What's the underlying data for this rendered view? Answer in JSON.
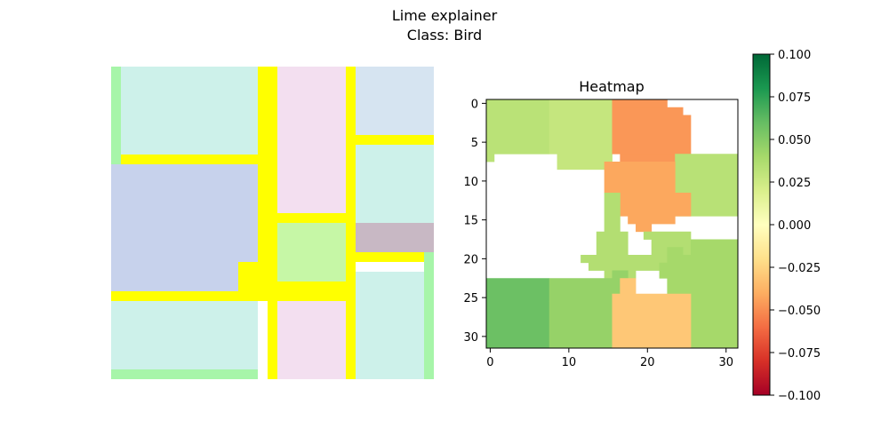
{
  "figure": {
    "title_line1": "Lime explainer",
    "title_line2": "Class: Bird"
  },
  "chart_data": [
    {
      "type": "image",
      "description_key": "superpixel-boundary-overlay",
      "segments": [
        {
          "id": "A",
          "color": "#cdf1ea"
        },
        {
          "id": "B",
          "color": "#f3dff0"
        },
        {
          "id": "C",
          "color": "#d6e4f1"
        },
        {
          "id": "D",
          "color": "#c7d2ec"
        },
        {
          "id": "E",
          "color": "#cdf1ea"
        },
        {
          "id": "F",
          "color": "#c6f7a6"
        },
        {
          "id": "G",
          "color": "#cdf1ea"
        },
        {
          "id": "H",
          "color": "#f3dff0"
        },
        {
          "id": "I",
          "color": "#cdf1ea"
        },
        {
          "id": "J",
          "color": "#c8b8c4"
        }
      ],
      "boundary_color": "#ffff00",
      "border_color": "#a7f5a9"
    },
    {
      "type": "heatmap",
      "title": "Heatmap",
      "grid_size": 32,
      "xlim": [
        -0.5,
        31.5
      ],
      "ylim": [
        31.5,
        -0.5
      ],
      "xticks": [
        0,
        10,
        20,
        30
      ],
      "yticks": [
        0,
        5,
        10,
        15,
        20,
        25,
        30
      ],
      "colormap": "RdYlGn",
      "vmin": -0.1,
      "vmax": 0.1,
      "colorbar_ticks": [
        "0.100",
        "0.075",
        "0.050",
        "0.025",
        "0.000",
        "−0.025",
        "−0.050",
        "−0.075",
        "−0.100"
      ],
      "regions": [
        {
          "id": "r1",
          "value": 0.032,
          "cells": [
            [
              0,
              0,
              8,
              7
            ],
            [
              0,
              7,
              1,
              1
            ]
          ]
        },
        {
          "id": "r2",
          "value": 0.028,
          "cells": [
            [
              8,
              0,
              8,
              7
            ],
            [
              9,
              7,
              7,
              1
            ],
            [
              9,
              8,
              7,
              1
            ]
          ]
        },
        {
          "id": "r3",
          "value": -0.047,
          "cells": [
            [
              16,
              0,
              7,
              1
            ],
            [
              16,
              1,
              9,
              1
            ],
            [
              16,
              2,
              10,
              5
            ],
            [
              17,
              7,
              9,
              1
            ],
            [
              17,
              8,
              9,
              1
            ]
          ]
        },
        {
          "id": "r4",
          "value": 0.033,
          "cells": [
            [
              24,
              7,
              8,
              8
            ]
          ]
        },
        {
          "id": "r5",
          "value": -0.042,
          "cells": [
            [
              15,
              8,
              9,
              4
            ],
            [
              17,
              12,
              9,
              3
            ],
            [
              18,
              15,
              6,
              1
            ],
            [
              19,
              16,
              2,
              1
            ]
          ]
        },
        {
          "id": "r6",
          "value": 0.035,
          "cells": [
            [
              15,
              12,
              2,
              6
            ],
            [
              14,
              17,
              4,
              3
            ],
            [
              12,
              20,
              12,
              1
            ],
            [
              13,
              21,
              10,
              1
            ],
            [
              15,
              22,
              4,
              1
            ],
            [
              20,
              17,
              6,
              1
            ],
            [
              21,
              18,
              5,
              2
            ]
          ]
        },
        {
          "id": "r7",
          "value": 0.04,
          "cells": [
            [
              23,
              19,
              2,
              1
            ],
            [
              23,
              20,
              9,
              5
            ],
            [
              26,
              18,
              6,
              2
            ],
            [
              22,
              21,
              2,
              2
            ],
            [
              24,
              25,
              8,
              3
            ],
            [
              25,
              28,
              7,
              4
            ]
          ]
        },
        {
          "id": "r8",
          "value": 0.058,
          "cells": [
            [
              0,
              23,
              8,
              9
            ]
          ]
        },
        {
          "id": "r9",
          "value": 0.045,
          "cells": [
            [
              8,
              23,
              10,
              3
            ],
            [
              8,
              26,
              10,
              5
            ],
            [
              16,
              22,
              2,
              1
            ],
            [
              8,
              31,
              8,
              1
            ]
          ]
        },
        {
          "id": "r10",
          "value": -0.03,
          "cells": [
            [
              17,
              23,
              2,
              2
            ],
            [
              16,
              25,
              10,
              7
            ]
          ]
        }
      ]
    }
  ]
}
